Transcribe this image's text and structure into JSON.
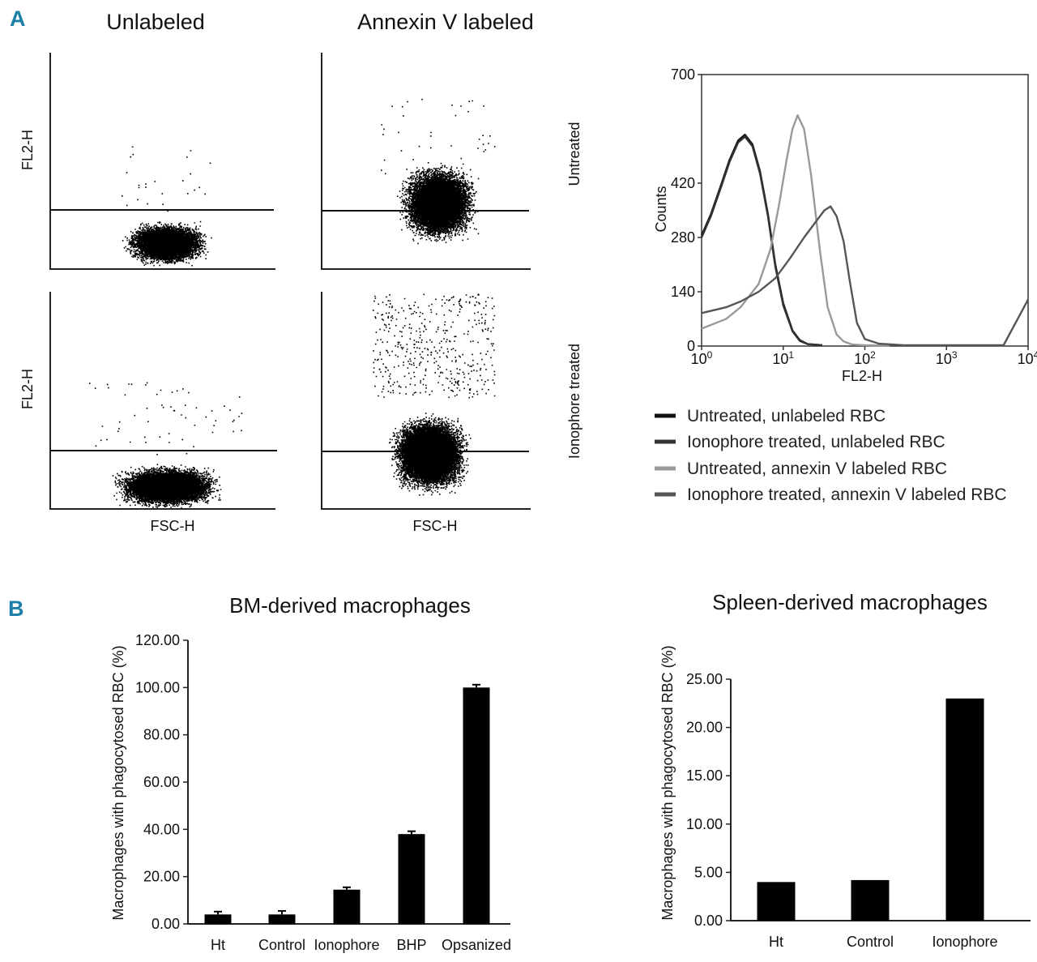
{
  "panel_a": {
    "letter": "A",
    "column_titles": [
      "Unlabeled",
      "Annexin V labeled"
    ],
    "row_labels": [
      "Untreated",
      "Ionophore treated"
    ],
    "scatter_ylabel": "FL2-H",
    "scatter_xlabel": "FSC-H"
  },
  "panel_b": {
    "letter": "B"
  },
  "colors": {
    "panel_letter": "#1b7fa6",
    "bars": "#000000",
    "untreated_unlabeled": "#111111",
    "ionophore_unlabeled": "#333333",
    "untreated_annexin": "#999999",
    "ionophore_annexin": "#555555"
  },
  "chart_data": [
    {
      "id": "histogram",
      "type": "line",
      "xscale": "log",
      "xlabel": "FL2-H",
      "ylabel": "Counts",
      "xlim": [
        1,
        10000
      ],
      "ylim": [
        0,
        700
      ],
      "y_ticks": [
        "0",
        "140",
        "280",
        "420",
        "700"
      ],
      "x_ticks": [
        {
          "base": "10",
          "exp": "0"
        },
        {
          "base": "10",
          "exp": "1"
        },
        {
          "base": "10",
          "exp": "2"
        },
        {
          "base": "10",
          "exp": "3"
        },
        {
          "base": "10",
          "exp": "4"
        }
      ],
      "series": [
        {
          "name": "Untreated, unlabeled RBC",
          "color": "#111111",
          "x": [
            1,
            1.3,
            1.7,
            2.2,
            2.8,
            3.4,
            4.2,
            5.2,
            6.5,
            8,
            10,
            13,
            16,
            20,
            30
          ],
          "y": [
            285,
            340,
            410,
            480,
            530,
            545,
            520,
            450,
            340,
            210,
            110,
            40,
            15,
            5,
            2
          ]
        },
        {
          "name": "Ionophore treated, unlabeled RBC",
          "color": "#333333",
          "x": [
            1,
            1.3,
            1.7,
            2.2,
            2.8,
            3.4,
            4.2,
            5.2,
            6.5,
            8,
            10,
            13,
            16,
            20,
            30
          ],
          "y": [
            280,
            335,
            405,
            475,
            525,
            540,
            515,
            445,
            335,
            205,
            105,
            38,
            13,
            5,
            2
          ]
        },
        {
          "name": "Untreated, annexin V labeled RBC",
          "color": "#999999",
          "x": [
            1,
            2,
            3,
            5,
            7,
            9,
            11,
            13,
            15,
            18,
            22,
            28,
            35,
            45,
            55,
            70,
            100,
            200
          ],
          "y": [
            45,
            70,
            100,
            160,
            250,
            370,
            480,
            560,
            595,
            560,
            440,
            250,
            100,
            30,
            12,
            4,
            2,
            1
          ]
        },
        {
          "name": "Ionophore treated, annexin V labeled RBC",
          "color": "#555555",
          "x": [
            1,
            2,
            3,
            5,
            8,
            12,
            18,
            25,
            32,
            38,
            45,
            55,
            65,
            80,
            100,
            150,
            300,
            1000,
            5000,
            10000
          ],
          "y": [
            85,
            100,
            115,
            140,
            175,
            225,
            280,
            320,
            350,
            360,
            335,
            270,
            170,
            60,
            18,
            6,
            2,
            2,
            2,
            120
          ]
        }
      ]
    },
    {
      "id": "bm_bar",
      "type": "bar",
      "title": "BM-derived macrophages",
      "ylabel": "Macrophages with phagocytosed RBC (%)",
      "xlabel": "",
      "categories": [
        "Ht",
        "Control",
        "Ionophore",
        "BHP",
        "Opsanized"
      ],
      "values": [
        4,
        4,
        14.5,
        38,
        100
      ],
      "errors": [
        1.2,
        1.5,
        1.0,
        1.2,
        1.2
      ],
      "ylim": [
        0,
        120
      ],
      "y_ticks": [
        "0.00",
        "20.00",
        "40.00",
        "60.00",
        "80.00",
        "100.00",
        "120.00"
      ]
    },
    {
      "id": "spleen_bar",
      "type": "bar",
      "title": "Spleen-derived macrophages",
      "ylabel": "Macrophages with phagocytosed RBC (%)",
      "xlabel": "",
      "categories": [
        "Ht",
        "Control",
        "Ionophore"
      ],
      "values": [
        4,
        4.2,
        23
      ],
      "ylim": [
        0,
        25
      ],
      "y_ticks": [
        "0.00",
        "5.00",
        "10.00",
        "15.00",
        "20.00",
        "25.00"
      ]
    }
  ]
}
